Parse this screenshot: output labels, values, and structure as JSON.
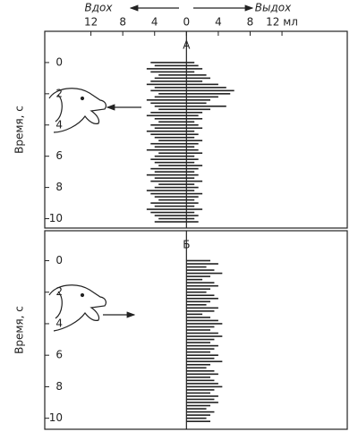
{
  "chart_data": [
    {
      "type": "bar",
      "title": "А",
      "y_label": "Время, с",
      "top_left_label": "Вдох",
      "top_right_label": "Выдох",
      "xlim": [
        -17.8,
        20.2
      ],
      "xticks": [
        {
          "value": -12,
          "label": "12"
        },
        {
          "value": -8,
          "label": "8"
        },
        {
          "value": -4,
          "label": "4"
        },
        0,
        4,
        8,
        {
          "value": 12,
          "label": "12 мл"
        }
      ],
      "ylim": [
        10.6,
        -2.0
      ],
      "yticks": [
        0,
        2,
        4,
        6,
        8,
        10
      ],
      "y": [
        0,
        0.2,
        0.4,
        0.6,
        0.8,
        1,
        1.2,
        1.4,
        1.6,
        1.8,
        2,
        2.2,
        2.4,
        2.6,
        2.8,
        3,
        3.2,
        3.4,
        3.6,
        3.8,
        4,
        4.2,
        4.4,
        4.6,
        4.8,
        5,
        5.2,
        5.4,
        5.6,
        5.8,
        6,
        6.2,
        6.4,
        6.6,
        6.8,
        7,
        7.2,
        7.4,
        7.6,
        7.8,
        8,
        8.2,
        8.4,
        8.6,
        8.8,
        9,
        9.2,
        9.4,
        9.6,
        9.8,
        10,
        10.2
      ],
      "series": [
        {
          "color": "#222222",
          "values": [
            -4.5,
            -4,
            -5,
            -4.5,
            -3.5,
            -4,
            -4.5,
            -5,
            -4,
            -4.5,
            -3.5,
            -4,
            -5,
            -4.5,
            -4,
            -3.5,
            -4.5,
            -5,
            -4,
            -3.5,
            -4.5,
            -4,
            -5,
            -4.5,
            -4,
            -3.5,
            -4.5,
            -4,
            -5,
            -3.5,
            -4,
            -4.5,
            -4,
            -3.5,
            -4.5,
            -4,
            -5,
            -4,
            -4.5,
            -3.5,
            -4,
            -5,
            -4.5,
            -4,
            -3.5,
            -4.5,
            -4,
            -5,
            -4.5,
            -4,
            -3.5,
            -4
          ]
        },
        {
          "color": "#222222",
          "values": [
            1,
            1.5,
            2,
            1,
            2.5,
            3,
            2,
            4,
            5,
            6,
            5.5,
            4,
            3,
            2.5,
            5,
            3,
            2,
            1.5,
            2,
            1,
            1.5,
            2,
            1,
            1.5,
            1,
            2,
            1.5,
            1,
            1.5,
            2,
            1,
            1.5,
            1,
            2,
            1.5,
            1,
            1.5,
            1,
            2,
            1,
            1.5,
            1,
            2,
            1.5,
            1,
            1.5,
            1,
            2,
            1,
            1.5,
            1,
            1.5
          ]
        }
      ]
    },
    {
      "type": "bar",
      "title": "Б",
      "y_label": "Время, с",
      "xlim": [
        -17.8,
        20.2
      ],
      "ylim": [
        10.7,
        -1.9
      ],
      "yticks": [
        0,
        2,
        4,
        6,
        8,
        10
      ],
      "y": [
        0,
        0.2,
        0.4,
        0.6,
        0.8,
        1,
        1.2,
        1.4,
        1.6,
        1.8,
        2,
        2.2,
        2.4,
        2.6,
        2.8,
        3,
        3.2,
        3.4,
        3.6,
        3.8,
        4,
        4.2,
        4.4,
        4.6,
        4.8,
        5,
        5.2,
        5.4,
        5.6,
        5.8,
        6,
        6.2,
        6.4,
        6.6,
        6.8,
        7,
        7.2,
        7.4,
        7.6,
        7.8,
        8,
        8.2,
        8.4,
        8.6,
        8.8,
        9,
        9.2,
        9.4,
        9.6,
        9.8,
        10,
        10.2
      ],
      "series": [
        {
          "color": "#222222",
          "values": [
            3,
            4,
            2.5,
            3.5,
            4.5,
            3,
            2,
            3.5,
            4,
            3,
            2.5,
            3.5,
            4,
            3,
            2.5,
            4,
            3.5,
            2,
            3,
            4,
            4.5,
            3.5,
            3,
            4,
            4.5,
            3.5,
            3,
            4,
            3.5,
            3,
            4,
            3.5,
            4.5,
            3,
            2.5,
            3.5,
            4,
            3,
            3.5,
            4,
            4.5,
            3.5,
            3,
            4,
            3.5,
            4,
            3,
            2.5,
            3.5,
            3,
            2.5,
            3
          ]
        }
      ]
    }
  ]
}
